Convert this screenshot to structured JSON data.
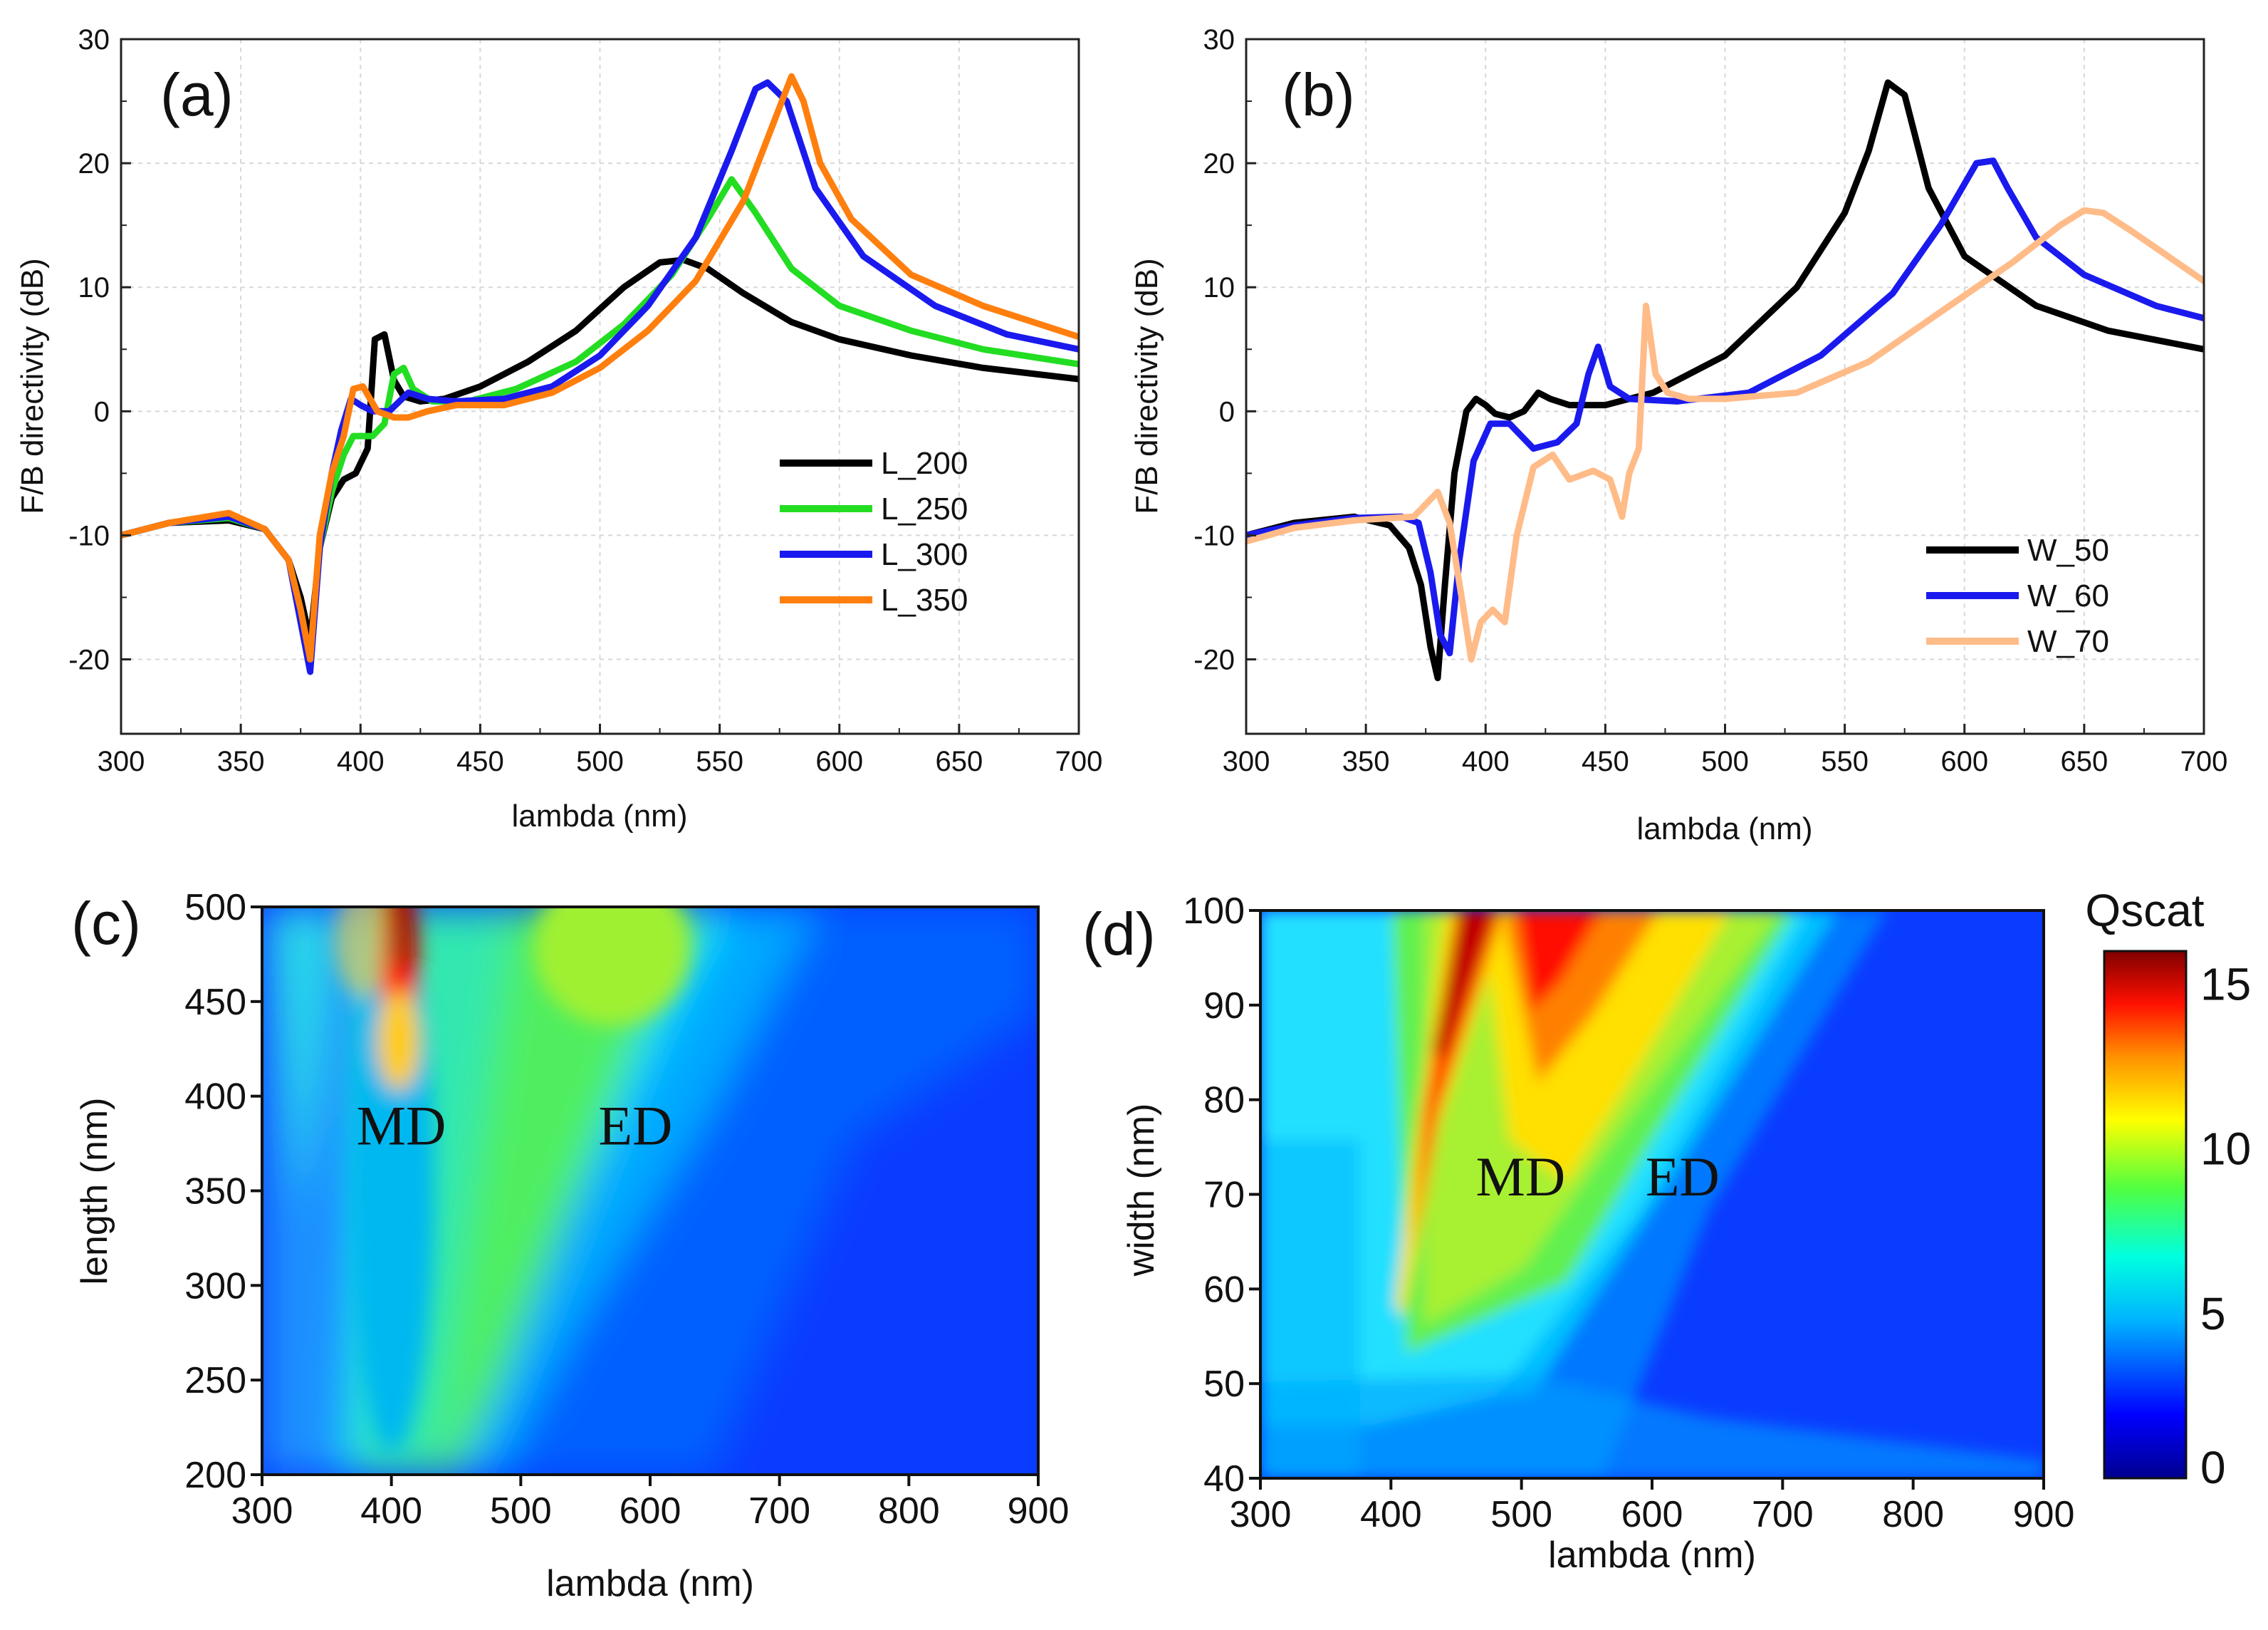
{
  "chart_data": [
    {
      "panel_label": "(a)",
      "type": "line",
      "xlabel": "lambda (nm)",
      "ylabel": "F/B directivity (dB)",
      "xlim": [
        300,
        700
      ],
      "ylim": [
        -26,
        30
      ],
      "xticks": [
        300,
        350,
        400,
        450,
        500,
        550,
        600,
        650,
        700
      ],
      "yticks": [
        -20,
        -10,
        0,
        10,
        20,
        30
      ],
      "grid": true,
      "legend_position": "right-center",
      "series": [
        {
          "name": "L_200",
          "color": "#000000",
          "x": [
            300,
            320,
            345,
            360,
            370,
            375,
            379,
            383,
            388,
            393,
            398,
            403,
            406,
            410,
            414,
            418,
            425,
            435,
            450,
            470,
            490,
            510,
            525,
            535,
            545,
            560,
            580,
            600,
            630,
            660,
            700
          ],
          "y": [
            -10,
            -9,
            -8.8,
            -9.5,
            -12,
            -15,
            -18.5,
            -11,
            -7,
            -5.5,
            -5,
            -3,
            5.8,
            6.2,
            2.5,
            1.2,
            0.8,
            1,
            2,
            4,
            6.5,
            10,
            12,
            12.2,
            11.5,
            9.5,
            7.2,
            5.8,
            4.5,
            3.5,
            2.6
          ]
        },
        {
          "name": "L_250",
          "color": "#22dd22",
          "x": [
            300,
            320,
            345,
            360,
            370,
            375,
            379,
            383,
            388,
            393,
            397,
            400,
            405,
            410,
            414,
            418,
            422,
            430,
            445,
            465,
            490,
            510,
            530,
            545,
            555,
            565,
            580,
            600,
            630,
            660,
            700
          ],
          "y": [
            -10,
            -9,
            -8.6,
            -9.5,
            -12,
            -16,
            -20,
            -11,
            -6.5,
            -3.5,
            -2,
            -2,
            -2,
            -1,
            3,
            3.5,
            1.8,
            0.8,
            0.8,
            1.8,
            4,
            7,
            11,
            15.5,
            18.7,
            16,
            11.5,
            8.5,
            6.5,
            5,
            3.8
          ]
        },
        {
          "name": "L_300",
          "color": "#1a1aee",
          "x": [
            300,
            320,
            345,
            360,
            370,
            375,
            379,
            383,
            388,
            392,
            396,
            400,
            405,
            412,
            420,
            428,
            440,
            460,
            480,
            500,
            520,
            540,
            555,
            565,
            570,
            578,
            590,
            610,
            640,
            670,
            700
          ],
          "y": [
            -10,
            -9,
            -8.5,
            -9.5,
            -12,
            -17,
            -21,
            -11,
            -5,
            -1.5,
            1,
            0.5,
            0,
            0,
            1.5,
            1,
            0.8,
            1,
            2,
            4.5,
            8.5,
            14,
            21,
            26,
            26.5,
            25,
            18,
            12.5,
            8.5,
            6.2,
            5
          ]
        },
        {
          "name": "L_350",
          "color": "#ff7f0e",
          "x": [
            300,
            320,
            345,
            360,
            370,
            375,
            379,
            383,
            388,
            393,
            397,
            401,
            407,
            414,
            420,
            428,
            440,
            460,
            480,
            500,
            520,
            540,
            560,
            572,
            580,
            585,
            592,
            605,
            630,
            660,
            700
          ],
          "y": [
            -10,
            -9,
            -8.2,
            -9.5,
            -12,
            -16,
            -20,
            -10,
            -5,
            -2,
            1.8,
            2,
            0,
            -0.5,
            -0.5,
            0,
            0.5,
            0.5,
            1.5,
            3.5,
            6.5,
            10.5,
            17,
            23,
            27,
            25,
            20,
            15.5,
            11,
            8.5,
            6
          ]
        }
      ]
    },
    {
      "panel_label": "(b)",
      "type": "line",
      "xlabel": "lambda (nm)",
      "ylabel": "F/B directivity (dB)",
      "xlim": [
        300,
        700
      ],
      "ylim": [
        -26,
        30
      ],
      "xticks": [
        300,
        350,
        400,
        450,
        500,
        550,
        600,
        650,
        700
      ],
      "yticks": [
        -20,
        -10,
        0,
        10,
        20,
        30
      ],
      "grid": true,
      "legend_position": "bottom-right",
      "series": [
        {
          "name": "W_50",
          "color": "#000000",
          "x": [
            300,
            320,
            345,
            360,
            368,
            373,
            377,
            380,
            383,
            387,
            392,
            396,
            400,
            404,
            410,
            416,
            422,
            427,
            435,
            450,
            470,
            500,
            530,
            550,
            560,
            568,
            575,
            585,
            600,
            630,
            660,
            700
          ],
          "y": [
            -10,
            -9,
            -8.5,
            -9.2,
            -11,
            -14,
            -19,
            -21.5,
            -14,
            -5,
            0,
            1,
            0.5,
            -0.2,
            -0.5,
            0,
            1.5,
            1,
            0.5,
            0.5,
            1.5,
            4.5,
            10,
            16,
            21,
            26.5,
            25.5,
            18,
            12.5,
            8.5,
            6.5,
            5
          ]
        },
        {
          "name": "W_60",
          "color": "#1a1aee",
          "x": [
            300,
            320,
            345,
            365,
            372,
            377,
            381,
            385,
            389,
            395,
            402,
            410,
            420,
            430,
            438,
            443,
            447,
            452,
            460,
            480,
            510,
            540,
            570,
            590,
            605,
            612,
            618,
            630,
            650,
            680,
            700
          ],
          "y": [
            -10,
            -9.2,
            -8.6,
            -8.5,
            -9,
            -13,
            -18,
            -19.5,
            -12,
            -4,
            -1,
            -1,
            -3,
            -2.5,
            -1,
            3,
            5.2,
            2,
            1,
            0.8,
            1.5,
            4.5,
            9.5,
            15,
            20,
            20.2,
            18,
            14,
            11,
            8.5,
            7.5
          ]
        },
        {
          "name": "W_70",
          "color": "#ffbb88",
          "x": [
            300,
            320,
            345,
            370,
            380,
            385,
            390,
            394,
            398,
            403,
            408,
            413,
            420,
            428,
            435,
            445,
            452,
            457,
            460,
            464,
            467,
            471,
            476,
            485,
            500,
            530,
            560,
            590,
            620,
            640,
            650,
            658,
            670,
            685,
            700
          ],
          "y": [
            -10.5,
            -9.4,
            -8.8,
            -8.5,
            -6.5,
            -9,
            -15,
            -20,
            -17,
            -16,
            -17,
            -10,
            -4.5,
            -3.5,
            -5.5,
            -4.8,
            -5.5,
            -8.5,
            -5,
            -3,
            8.5,
            3,
            1.5,
            1,
            1,
            1.5,
            4,
            8,
            12,
            15,
            16.2,
            16,
            14.5,
            12.5,
            10.5
          ]
        }
      ]
    },
    {
      "panel_label": "(c)",
      "type": "heatmap",
      "xlabel": "lambda (nm)",
      "ylabel": "length (nm)",
      "xlim": [
        300,
        900
      ],
      "ylim": [
        200,
        500
      ],
      "xticks": [
        300,
        400,
        500,
        600,
        700,
        800,
        900
      ],
      "yticks": [
        200,
        250,
        300,
        350,
        400,
        450,
        500
      ],
      "annotations": [
        {
          "text": "MD",
          "x": 373,
          "y": 385
        },
        {
          "text": "ED",
          "x": 560,
          "y": 385
        }
      ]
    },
    {
      "panel_label": "(d)",
      "type": "heatmap",
      "xlabel": "lambda (nm)",
      "ylabel": "width (nm)",
      "xlim": [
        300,
        900
      ],
      "ylim": [
        40,
        100
      ],
      "xticks": [
        300,
        400,
        500,
        600,
        700,
        800,
        900
      ],
      "yticks": [
        40,
        50,
        60,
        70,
        80,
        90,
        100
      ],
      "annotations": [
        {
          "text": "MD",
          "x": 465,
          "y": 72
        },
        {
          "text": "ED",
          "x": 595,
          "y": 72
        }
      ],
      "colorbar": {
        "title": "Qscat",
        "min": 0,
        "max": 16,
        "ticks": [
          0,
          5,
          10,
          15
        ]
      }
    }
  ]
}
